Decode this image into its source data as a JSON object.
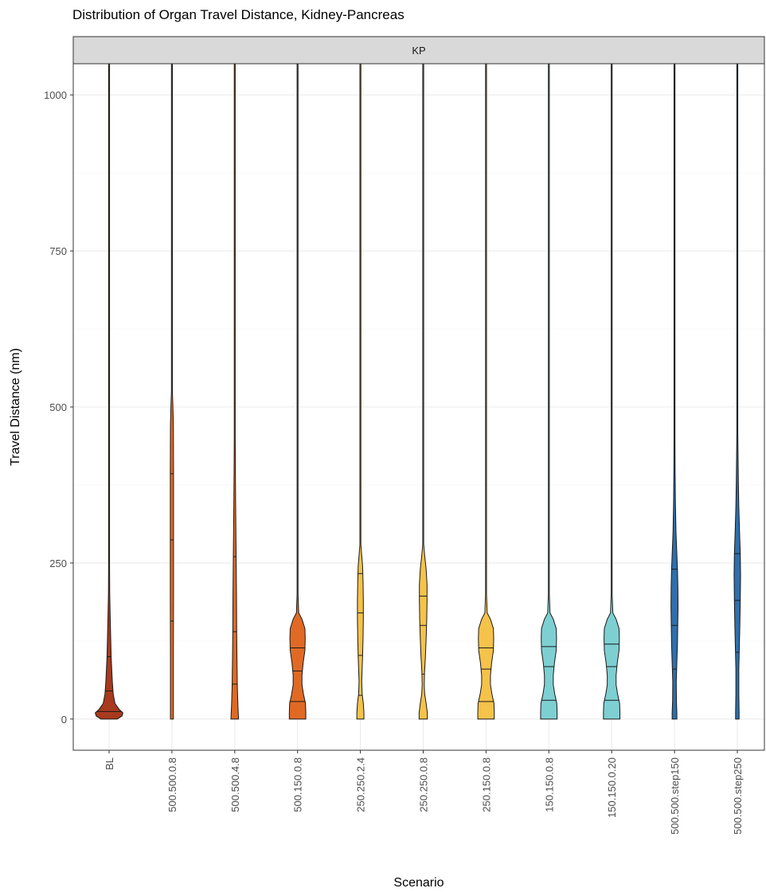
{
  "chart_data": {
    "type": "violin",
    "title": "Distribution of Organ Travel Distance, Kidney-Pancreas",
    "facet_label": "KP",
    "xlabel": "Scenario",
    "ylabel": "Travel Distance (nm)",
    "ylim": [
      -50,
      1050
    ],
    "yticks": [
      0,
      250,
      500,
      750,
      1000
    ],
    "grid": true,
    "legend": "none",
    "categories": [
      "BL",
      "500.500.0.8",
      "500.500.4.8",
      "500.150.0.8",
      "250.250.2.4",
      "250.250.0.8",
      "250.150.0.8",
      "150.150.0.8",
      "150.150.0.20",
      "500.500.step150",
      "500.500.step250"
    ],
    "series": [
      {
        "category": "BL",
        "color": "#a83a1e",
        "max": 1050,
        "quantiles": [
          12,
          45,
          100
        ],
        "profile": [
          [
            0,
            0.28
          ],
          [
            5,
            0.44
          ],
          [
            10,
            0.47
          ],
          [
            15,
            0.35
          ],
          [
            25,
            0.2
          ],
          [
            40,
            0.14
          ],
          [
            60,
            0.11
          ],
          [
            80,
            0.09
          ],
          [
            100,
            0.07
          ],
          [
            130,
            0.055
          ],
          [
            160,
            0.04
          ],
          [
            200,
            0.022
          ],
          [
            250,
            0.012
          ],
          [
            320,
            0.005
          ],
          [
            450,
            0.003
          ],
          [
            550,
            0.002
          ],
          [
            1050,
            0.002
          ]
        ]
      },
      {
        "category": "500.500.0.8",
        "color": "#e06a24",
        "max": 1050,
        "quantiles": [
          157,
          287,
          393
        ],
        "profile": [
          [
            0,
            0.05
          ],
          [
            100,
            0.05
          ],
          [
            200,
            0.055
          ],
          [
            300,
            0.055
          ],
          [
            400,
            0.055
          ],
          [
            470,
            0.05
          ],
          [
            500,
            0.035
          ],
          [
            525,
            0.015
          ],
          [
            560,
            0.004
          ],
          [
            700,
            0.002
          ],
          [
            1050,
            0.002
          ]
        ]
      },
      {
        "category": "500.500.4.8",
        "color": "#e06a24",
        "max": 1050,
        "quantiles": [
          56,
          140,
          260
        ],
        "profile": [
          [
            0,
            0.13
          ],
          [
            20,
            0.11
          ],
          [
            50,
            0.09
          ],
          [
            100,
            0.075
          ],
          [
            150,
            0.065
          ],
          [
            200,
            0.06
          ],
          [
            250,
            0.05
          ],
          [
            300,
            0.04
          ],
          [
            350,
            0.03
          ],
          [
            400,
            0.022
          ],
          [
            450,
            0.015
          ],
          [
            500,
            0.006
          ],
          [
            600,
            0.003
          ],
          [
            1050,
            0.002
          ]
        ]
      },
      {
        "category": "500.150.0.8",
        "color": "#e06a24",
        "max": 1050,
        "quantiles": [
          28,
          77,
          114
        ],
        "profile": [
          [
            0,
            0.28
          ],
          [
            10,
            0.28
          ],
          [
            25,
            0.27
          ],
          [
            40,
            0.2
          ],
          [
            55,
            0.15
          ],
          [
            70,
            0.15
          ],
          [
            90,
            0.19
          ],
          [
            110,
            0.25
          ],
          [
            130,
            0.26
          ],
          [
            145,
            0.25
          ],
          [
            160,
            0.15
          ],
          [
            170,
            0.04
          ],
          [
            200,
            0.008
          ],
          [
            300,
            0.003
          ],
          [
            1050,
            0.002
          ]
        ]
      },
      {
        "category": "250.250.2.4",
        "color": "#f5c24a",
        "max": 1050,
        "quantiles": [
          38,
          102,
          170,
          233
        ],
        "profile": [
          [
            0,
            0.12
          ],
          [
            10,
            0.12
          ],
          [
            25,
            0.1
          ],
          [
            40,
            0.06
          ],
          [
            60,
            0.045
          ],
          [
            80,
            0.06
          ],
          [
            100,
            0.075
          ],
          [
            130,
            0.09
          ],
          [
            160,
            0.1
          ],
          [
            190,
            0.1
          ],
          [
            220,
            0.09
          ],
          [
            245,
            0.075
          ],
          [
            265,
            0.04
          ],
          [
            280,
            0.012
          ],
          [
            300,
            0.004
          ],
          [
            1050,
            0.002
          ]
        ]
      },
      {
        "category": "250.250.0.8",
        "color": "#f5c24a",
        "max": 1050,
        "quantiles": [
          72,
          150,
          197
        ],
        "profile": [
          [
            0,
            0.14
          ],
          [
            10,
            0.14
          ],
          [
            25,
            0.1
          ],
          [
            40,
            0.05
          ],
          [
            55,
            0.035
          ],
          [
            75,
            0.045
          ],
          [
            100,
            0.075
          ],
          [
            130,
            0.1
          ],
          [
            160,
            0.12
          ],
          [
            190,
            0.13
          ],
          [
            215,
            0.13
          ],
          [
            240,
            0.1
          ],
          [
            262,
            0.05
          ],
          [
            280,
            0.01
          ],
          [
            300,
            0.004
          ],
          [
            1050,
            0.002
          ]
        ]
      },
      {
        "category": "250.150.0.8",
        "color": "#f5c24a",
        "max": 1050,
        "quantiles": [
          28,
          80,
          114
        ],
        "profile": [
          [
            0,
            0.28
          ],
          [
            10,
            0.28
          ],
          [
            25,
            0.27
          ],
          [
            40,
            0.2
          ],
          [
            55,
            0.15
          ],
          [
            70,
            0.15
          ],
          [
            90,
            0.19
          ],
          [
            110,
            0.25
          ],
          [
            130,
            0.26
          ],
          [
            145,
            0.25
          ],
          [
            160,
            0.15
          ],
          [
            170,
            0.04
          ],
          [
            200,
            0.008
          ],
          [
            300,
            0.003
          ],
          [
            1050,
            0.002
          ]
        ]
      },
      {
        "category": "150.150.0.8",
        "color": "#7dcfd2",
        "max": 1050,
        "quantiles": [
          30,
          84,
          116
        ],
        "profile": [
          [
            0,
            0.28
          ],
          [
            10,
            0.28
          ],
          [
            25,
            0.27
          ],
          [
            40,
            0.2
          ],
          [
            55,
            0.15
          ],
          [
            70,
            0.15
          ],
          [
            90,
            0.19
          ],
          [
            110,
            0.25
          ],
          [
            130,
            0.26
          ],
          [
            145,
            0.25
          ],
          [
            160,
            0.15
          ],
          [
            170,
            0.04
          ],
          [
            200,
            0.008
          ],
          [
            300,
            0.003
          ],
          [
            1050,
            0.002
          ]
        ]
      },
      {
        "category": "150.150.0.20",
        "color": "#7dcfd2",
        "max": 1050,
        "quantiles": [
          30,
          84,
          120
        ],
        "profile": [
          [
            0,
            0.28
          ],
          [
            10,
            0.28
          ],
          [
            25,
            0.27
          ],
          [
            40,
            0.2
          ],
          [
            55,
            0.15
          ],
          [
            70,
            0.15
          ],
          [
            90,
            0.19
          ],
          [
            110,
            0.25
          ],
          [
            130,
            0.26
          ],
          [
            145,
            0.25
          ],
          [
            160,
            0.15
          ],
          [
            170,
            0.04
          ],
          [
            200,
            0.008
          ],
          [
            300,
            0.003
          ],
          [
            1050,
            0.002
          ]
        ]
      },
      {
        "category": "500.500.step150",
        "color": "#2f6fab",
        "max": 1050,
        "quantiles": [
          80,
          150,
          240
        ],
        "profile": [
          [
            0,
            0.08
          ],
          [
            10,
            0.08
          ],
          [
            30,
            0.065
          ],
          [
            60,
            0.06
          ],
          [
            90,
            0.08
          ],
          [
            120,
            0.1
          ],
          [
            150,
            0.11
          ],
          [
            180,
            0.12
          ],
          [
            210,
            0.115
          ],
          [
            240,
            0.1
          ],
          [
            270,
            0.075
          ],
          [
            300,
            0.05
          ],
          [
            350,
            0.03
          ],
          [
            400,
            0.02
          ],
          [
            450,
            0.012
          ],
          [
            500,
            0.005
          ],
          [
            600,
            0.002
          ],
          [
            1050,
            0.002
          ]
        ]
      },
      {
        "category": "500.500.step250",
        "color": "#2f6fab",
        "max": 1050,
        "quantiles": [
          107,
          190,
          265
        ],
        "profile": [
          [
            0,
            0.06
          ],
          [
            10,
            0.06
          ],
          [
            40,
            0.05
          ],
          [
            80,
            0.05
          ],
          [
            110,
            0.065
          ],
          [
            150,
            0.085
          ],
          [
            190,
            0.1
          ],
          [
            230,
            0.11
          ],
          [
            265,
            0.1
          ],
          [
            300,
            0.075
          ],
          [
            340,
            0.05
          ],
          [
            380,
            0.035
          ],
          [
            420,
            0.025
          ],
          [
            460,
            0.015
          ],
          [
            500,
            0.006
          ],
          [
            600,
            0.002
          ],
          [
            1050,
            0.002
          ]
        ]
      }
    ]
  }
}
